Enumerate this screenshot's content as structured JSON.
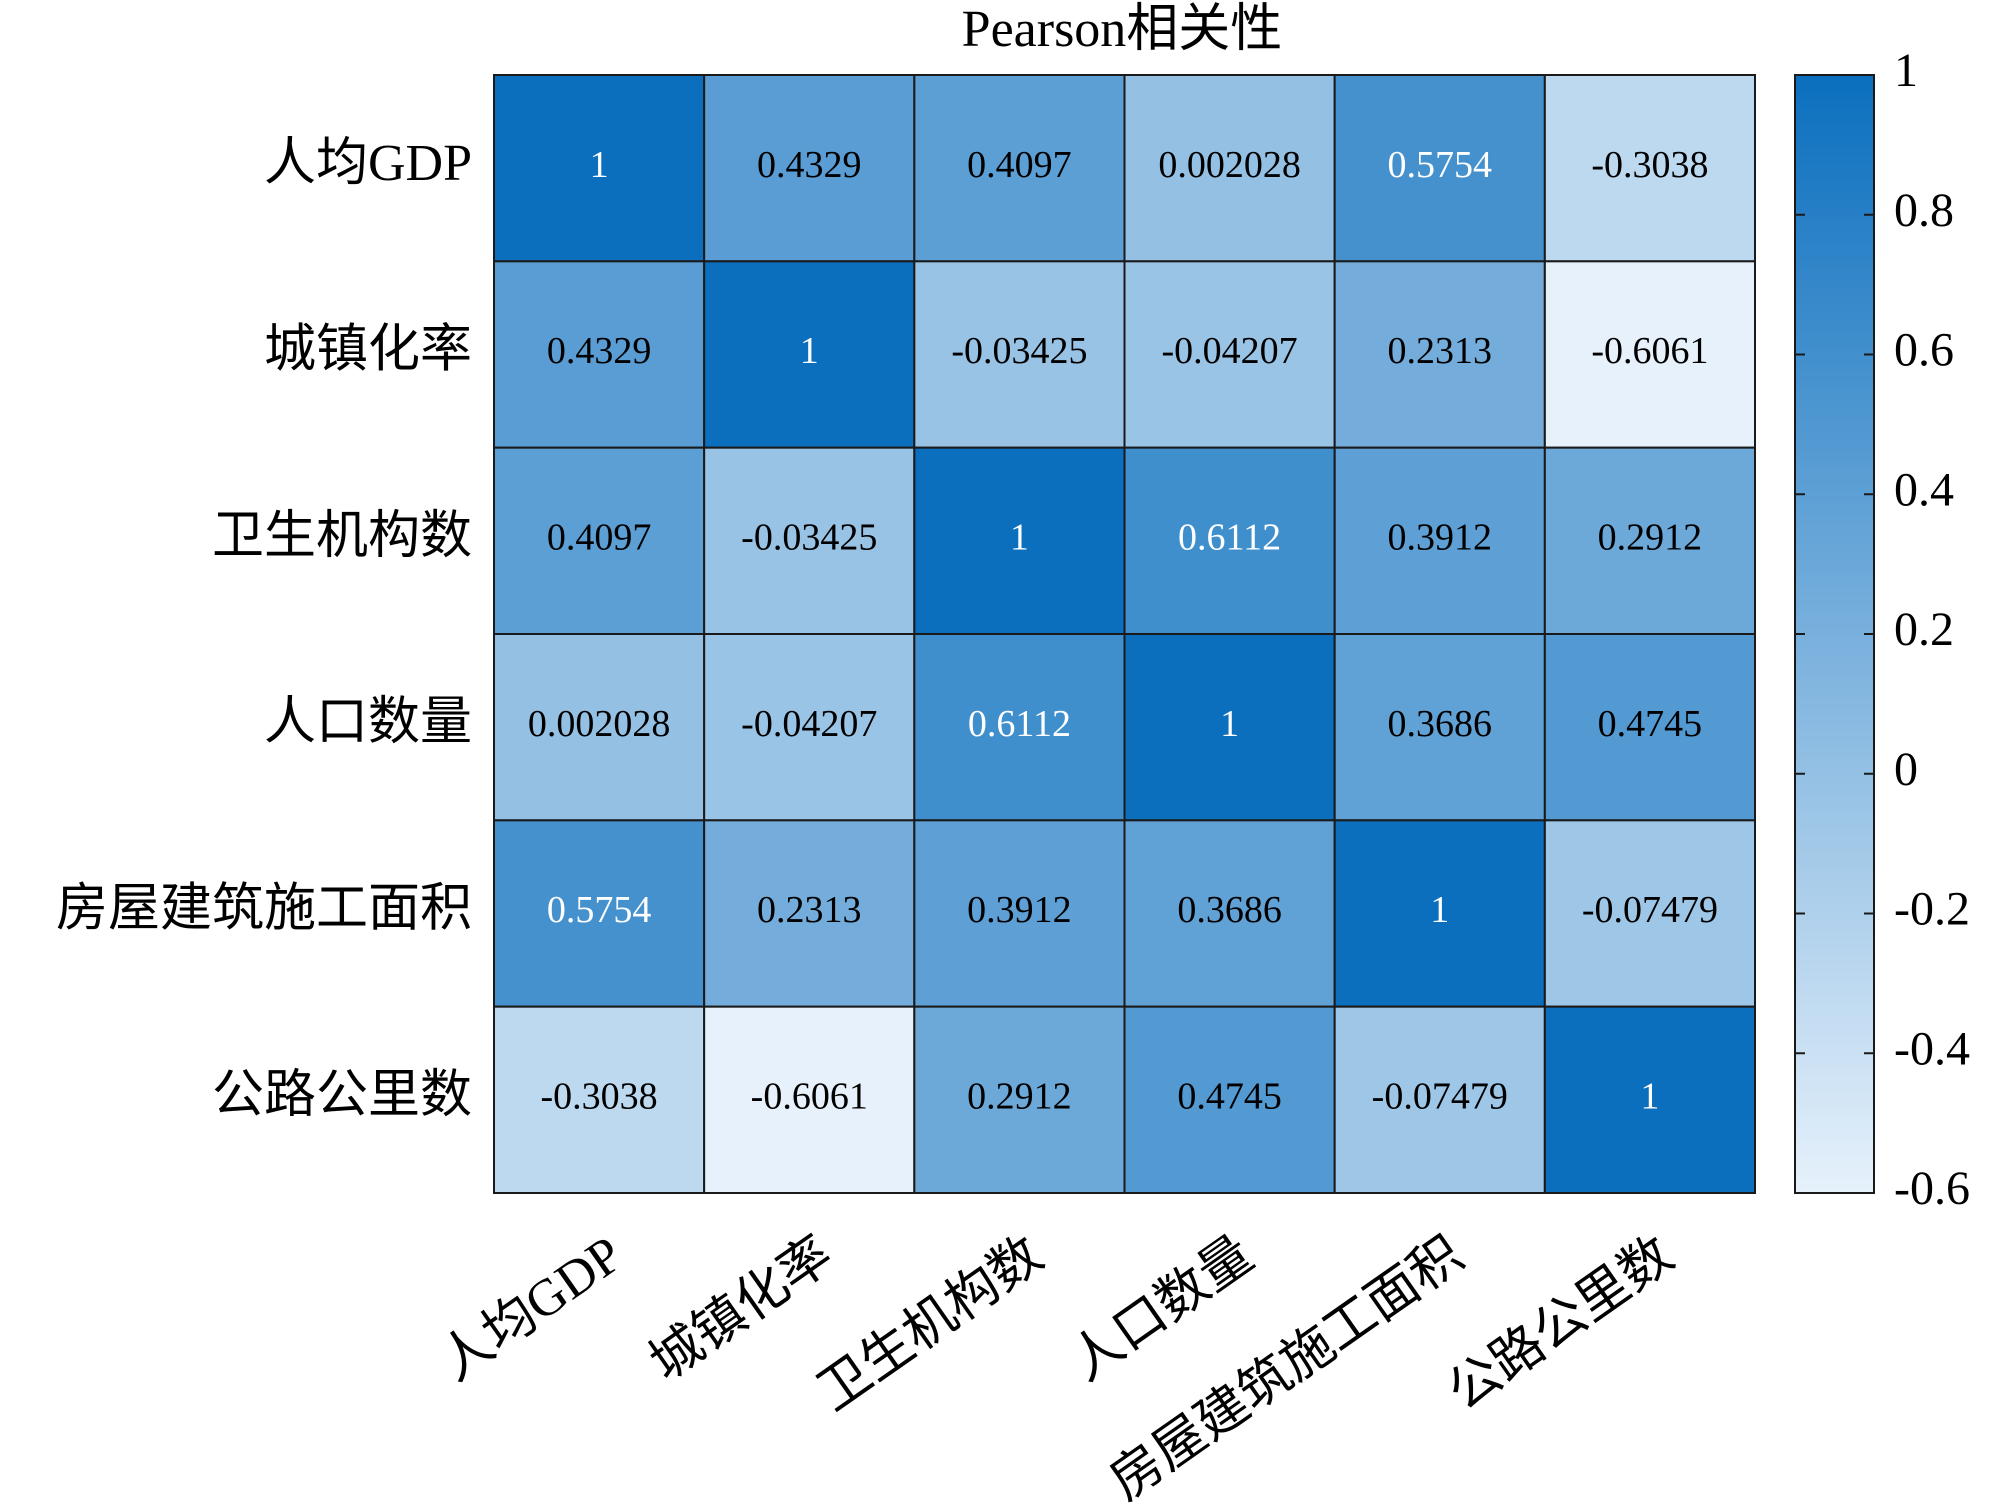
{
  "chart_data": {
    "type": "heatmap",
    "title": "Pearson相关性",
    "categories": [
      "人均GDP",
      "城镇化率",
      "卫生机构数",
      "人口数量",
      "房屋建筑施工面积",
      "公路公里数"
    ],
    "values": [
      [
        1,
        0.4329,
        0.4097,
        0.002028,
        0.5754,
        -0.3038
      ],
      [
        0.4329,
        1,
        -0.03425,
        -0.04207,
        0.2313,
        -0.6061
      ],
      [
        0.4097,
        -0.03425,
        1,
        0.6112,
        0.3912,
        0.2912
      ],
      [
        0.002028,
        -0.04207,
        0.6112,
        1,
        0.3686,
        0.4745
      ],
      [
        0.5754,
        0.2313,
        0.3912,
        0.3686,
        1,
        -0.07479
      ],
      [
        -0.3038,
        -0.6061,
        0.2912,
        0.4745,
        -0.07479,
        1
      ]
    ],
    "colors": [
      "#e6f1fb",
      "#0b6fbe"
    ],
    "clim": [
      -0.6,
      1
    ],
    "cticks": [
      -0.6,
      -0.4,
      -0.2,
      0,
      0.2,
      0.4,
      0.6,
      0.8,
      1
    ]
  }
}
